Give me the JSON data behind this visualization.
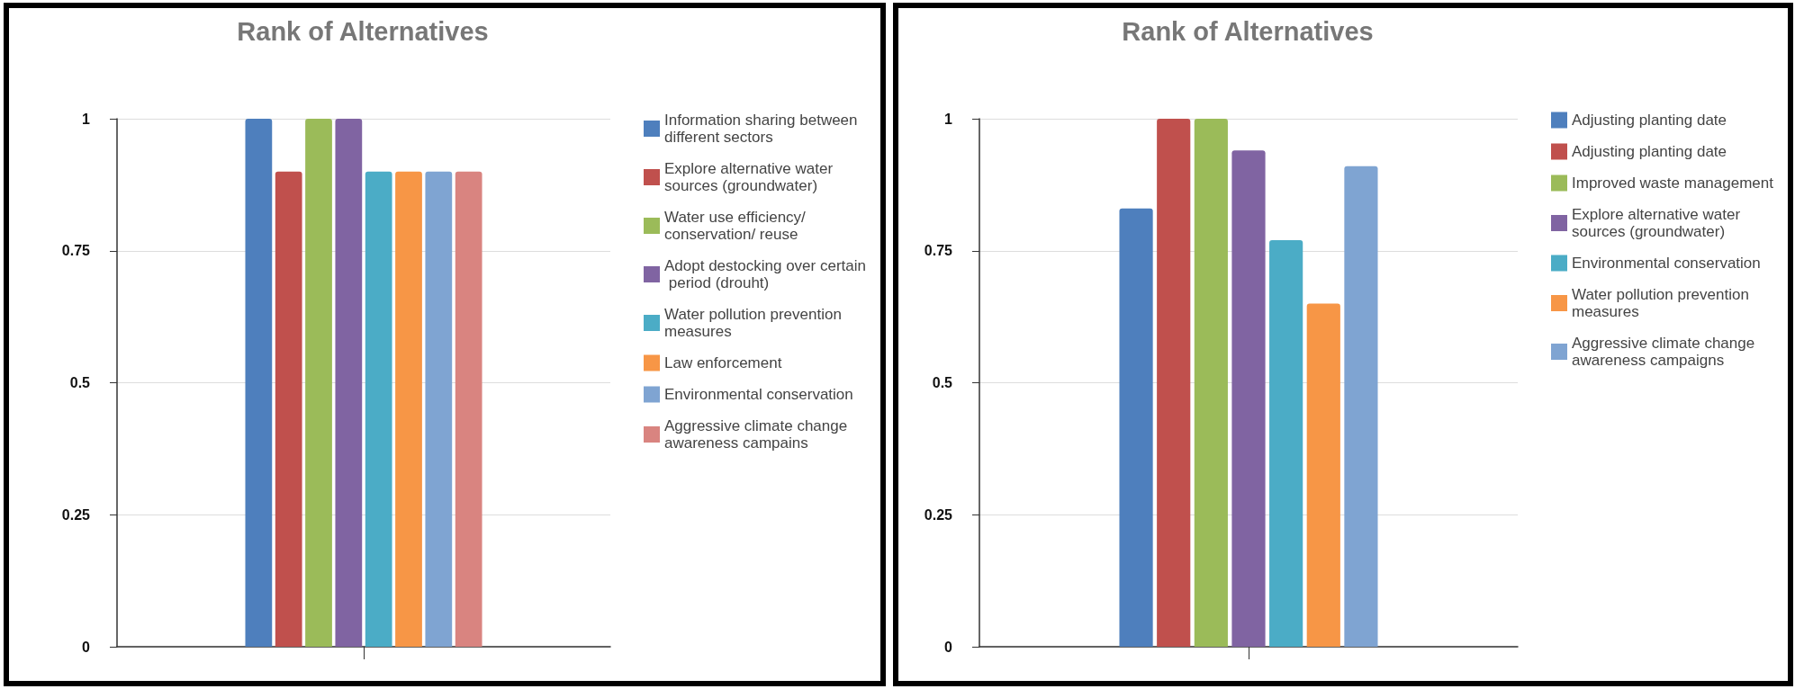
{
  "chart_data": [
    {
      "type": "bar",
      "title": "Rank of Alternatives",
      "categories": [
        null
      ],
      "series": [
        {
          "name": "Information sharing between different sectors",
          "color": "#4e7fbd",
          "values": [
            1
          ]
        },
        {
          "name": "Explore alternative water sources (groundwater)",
          "color": "#c0504d",
          "values": [
            0.9
          ]
        },
        {
          "name": "Water use efficiency/conservation/ reuse",
          "color": "#9bbb59",
          "values": [
            1
          ]
        },
        {
          "name": "Adopt destocking over certain period (drouht)",
          "color": "#8064a2",
          "values": [
            1
          ]
        },
        {
          "name": "Water pollution prevention measures",
          "color": "#4bacc6",
          "values": [
            0.9
          ]
        },
        {
          "name": "Law enforcement",
          "color": "#f79646",
          "values": [
            0.9
          ]
        },
        {
          "name": "Environmental conservation",
          "color": "#7fa4d2",
          "values": [
            0.9
          ]
        },
        {
          "name": "Aggressive climate change awareness campains",
          "color": "#d98480",
          "values": [
            0.9
          ]
        }
      ],
      "ylim": [
        0,
        1
      ],
      "yticks": [
        0,
        0.25,
        0.5,
        0.75,
        1
      ],
      "grid": "y",
      "legend": "right"
    },
    {
      "type": "bar",
      "title": "Rank of Alternatives",
      "categories": [
        null
      ],
      "series": [
        {
          "name": "Adjusting planting date",
          "color": "#4e7fbd",
          "values": [
            0.83
          ]
        },
        {
          "name": "Adjusting planting date",
          "color": "#c0504d",
          "values": [
            1
          ]
        },
        {
          "name": "Improved waste management",
          "color": "#9bbb59",
          "values": [
            1
          ]
        },
        {
          "name": "Explore alternative water sources (groundwater)",
          "color": "#8064a2",
          "values": [
            0.94
          ]
        },
        {
          "name": "Environmental conservation",
          "color": "#4bacc6",
          "values": [
            0.77
          ]
        },
        {
          "name": "Water pollution prevention measures",
          "color": "#f79646",
          "values": [
            0.65
          ]
        },
        {
          "name": "Aggressive climate change awareness campaigns",
          "color": "#7fa4d2",
          "values": [
            0.91
          ]
        }
      ],
      "ylim": [
        0,
        1
      ],
      "yticks": [
        0,
        0.25,
        0.5,
        0.75,
        1
      ],
      "grid": "y",
      "legend": "right"
    }
  ]
}
